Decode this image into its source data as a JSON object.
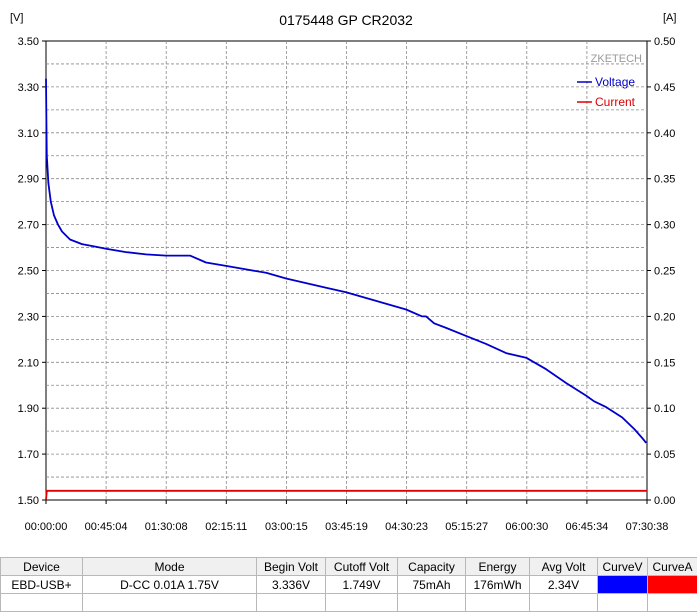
{
  "chart_data": {
    "type": "line",
    "title": "0175448 GP CR2032",
    "watermark": "ZKETECH",
    "left_unit": "[V]",
    "right_unit": "[A]",
    "x_ticks": [
      "00:00:00",
      "00:45:04",
      "01:30:08",
      "02:15:11",
      "03:00:15",
      "03:45:19",
      "04:30:23",
      "05:15:27",
      "06:00:30",
      "06:45:34",
      "07:30:38"
    ],
    "y_left": {
      "range": [
        1.5,
        3.5
      ],
      "ticks": [
        "1.50",
        "1.70",
        "1.90",
        "2.10",
        "2.30",
        "2.50",
        "2.70",
        "2.90",
        "3.10",
        "3.30",
        "3.50"
      ]
    },
    "y_right": {
      "range": [
        0,
        0.5
      ],
      "ticks": [
        "0.00",
        "0.05",
        "0.10",
        "0.15",
        "0.20",
        "0.25",
        "0.30",
        "0.35",
        "0.40",
        "0.45",
        "0.50"
      ]
    },
    "grid": true,
    "legend_position": "top-right",
    "series": [
      {
        "name": "Voltage",
        "axis": "left",
        "color": "#0000cc",
        "x_hours": [
          0,
          0.005,
          0.01,
          0.03,
          0.06,
          0.1,
          0.15,
          0.2,
          0.3,
          0.45,
          0.6,
          0.75,
          1.0,
          1.25,
          1.5,
          1.8,
          2.0,
          2.25,
          2.5,
          2.75,
          3.0,
          3.25,
          3.5,
          3.75,
          4.0,
          4.25,
          4.5,
          4.7,
          4.75,
          4.85,
          5.0,
          5.25,
          5.5,
          5.75,
          6.0,
          6.25,
          6.5,
          6.75,
          6.85,
          7.0,
          7.2,
          7.35,
          7.45,
          7.5
        ],
        "voltage": [
          3.336,
          3.15,
          3.0,
          2.88,
          2.8,
          2.74,
          2.7,
          2.67,
          2.635,
          2.615,
          2.605,
          2.595,
          2.58,
          2.57,
          2.565,
          2.565,
          2.535,
          2.52,
          2.505,
          2.49,
          2.465,
          2.445,
          2.425,
          2.405,
          2.38,
          2.355,
          2.33,
          2.3,
          2.3,
          2.27,
          2.25,
          2.215,
          2.18,
          2.14,
          2.12,
          2.07,
          2.01,
          1.955,
          1.93,
          1.905,
          1.86,
          1.81,
          1.77,
          1.749
        ]
      },
      {
        "name": "Current",
        "axis": "right",
        "color": "#dd0000",
        "x_hours": [
          0,
          0.01,
          7.51
        ],
        "current": [
          0.0,
          0.01,
          0.01
        ]
      }
    ]
  },
  "summary_table": {
    "headers": [
      "Device",
      "Mode",
      "Begin Volt",
      "Cutoff Volt",
      "Capacity",
      "Energy",
      "Avg Volt",
      "CurveV",
      "CurveA"
    ],
    "row": {
      "device": "EBD-USB+",
      "mode": "D-CC  0.01A  1.75V",
      "begin_volt": "3.336V",
      "cutoff_volt": "1.749V",
      "capacity": "75mAh",
      "energy": "176mWh",
      "avg_volt": "2.34V",
      "curve_v_color": "#0000ff",
      "curve_a_color": "#ff0000"
    }
  }
}
